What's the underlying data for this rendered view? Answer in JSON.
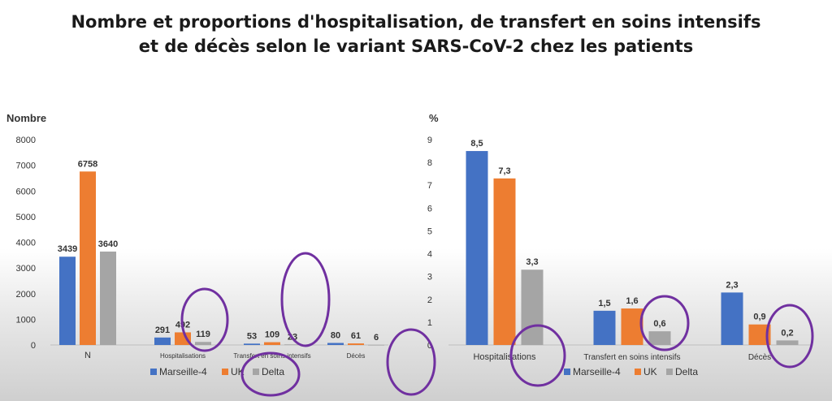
{
  "title": {
    "line1": "Nombre et proportions d'hospitalisation, de transfert en soins intensifs",
    "line2": "et de décès selon le variant SARS-CoV-2 chez les patients"
  },
  "colors": {
    "Marseille-4": "#4472c4",
    "UK": "#ed7d31",
    "Delta": "#a5a5a5",
    "annotation": "#7030a0"
  },
  "chart_data": [
    {
      "type": "bar",
      "ylabel": "Nombre",
      "ylim": [
        0,
        8000
      ],
      "yticks": [
        "0",
        "1000",
        "2000",
        "3000",
        "4000",
        "5000",
        "6000",
        "7000",
        "8000"
      ],
      "categories": [
        "N",
        "Hospitalisations",
        "Transfert en soins intensifs",
        "Décès"
      ],
      "series": [
        {
          "name": "Marseille-4",
          "values": [
            3439,
            291,
            53,
            80
          ],
          "labels": [
            "3439",
            "291",
            "53",
            "80"
          ]
        },
        {
          "name": "UK",
          "values": [
            6758,
            492,
            109,
            61
          ],
          "labels": [
            "6758",
            "492",
            "109",
            "61"
          ]
        },
        {
          "name": "Delta",
          "values": [
            3640,
            119,
            23,
            6
          ],
          "labels": [
            "3640",
            "119",
            "23",
            "6"
          ]
        }
      ],
      "grid": false,
      "legend": "bottom"
    },
    {
      "type": "bar",
      "ylabel": "%",
      "ylim": [
        0,
        9
      ],
      "yticks": [
        "0",
        "1",
        "2",
        "3",
        "4",
        "5",
        "6",
        "7",
        "8",
        "9"
      ],
      "categories": [
        "Hospitalisations",
        "Transfert en soins intensifs",
        "Décès"
      ],
      "series": [
        {
          "name": "Marseille-4",
          "values": [
            8.5,
            1.5,
            2.3
          ],
          "labels": [
            "8,5",
            "1,5",
            "2,3"
          ]
        },
        {
          "name": "UK",
          "values": [
            7.3,
            1.6,
            0.9
          ],
          "labels": [
            "7,3",
            "1,6",
            "0,9"
          ]
        },
        {
          "name": "Delta",
          "values": [
            3.3,
            0.6,
            0.2
          ],
          "labels": [
            "3,3",
            "0,6",
            "0,2"
          ]
        }
      ],
      "grid": false,
      "legend": "bottom"
    }
  ]
}
